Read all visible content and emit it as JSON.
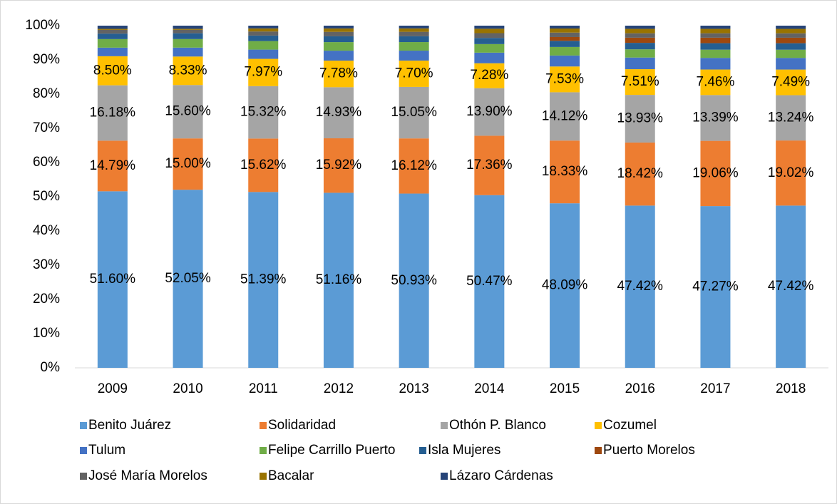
{
  "chart_data": {
    "type": "stacked_bar",
    "categories": [
      "2009",
      "2010",
      "2011",
      "2012",
      "2013",
      "2014",
      "2015",
      "2016",
      "2017",
      "2018"
    ],
    "series": [
      {
        "name": "Benito Juárez",
        "color": "#5b9bd5",
        "values": [
          51.6,
          52.05,
          51.39,
          51.16,
          50.93,
          50.47,
          48.09,
          47.42,
          47.27,
          47.42
        ],
        "value_labels": [
          "51.60%",
          "52.05%",
          "51.39%",
          "51.16%",
          "50.93%",
          "50.47%",
          "48.09%",
          "47.42%",
          "47.27%",
          "47.42%"
        ]
      },
      {
        "name": "Solidaridad",
        "color": "#ed7d31",
        "values": [
          14.79,
          15.0,
          15.62,
          15.92,
          16.12,
          17.36,
          18.33,
          18.42,
          19.06,
          19.02
        ],
        "value_labels": [
          "14.79%",
          "15.00%",
          "15.62%",
          "15.92%",
          "16.12%",
          "17.36%",
          "18.33%",
          "18.42%",
          "19.06%",
          "19.02%"
        ]
      },
      {
        "name": "Othón P. Blanco",
        "color": "#a5a5a5",
        "values": [
          16.18,
          15.6,
          15.32,
          14.93,
          15.05,
          13.9,
          14.12,
          13.93,
          13.39,
          13.24
        ],
        "value_labels": [
          "16.18%",
          "15.60%",
          "15.32%",
          "14.93%",
          "15.05%",
          "13.90%",
          "14.12%",
          "13.93%",
          "13.39%",
          "13.24%"
        ]
      },
      {
        "name": "Cozumel",
        "color": "#ffc000",
        "values": [
          8.5,
          8.33,
          7.97,
          7.78,
          7.7,
          7.28,
          7.53,
          7.51,
          7.46,
          7.49
        ],
        "value_labels": [
          "8.50%",
          "8.33%",
          "7.97%",
          "7.78%",
          "7.70%",
          "7.28%",
          "7.53%",
          "7.51%",
          "7.46%",
          "7.49%"
        ]
      },
      {
        "name": "Tulum",
        "color": "#4472c4",
        "values": [
          2.5,
          2.6,
          2.7,
          2.9,
          2.9,
          3.1,
          3.2,
          3.4,
          3.4,
          3.4
        ]
      },
      {
        "name": "Felipe Carrillo Puerto",
        "color": "#70ad47",
        "values": [
          2.5,
          2.5,
          2.5,
          2.5,
          2.5,
          2.5,
          2.5,
          2.4,
          2.4,
          2.4
        ]
      },
      {
        "name": "Isla Mujeres",
        "color": "#255e91",
        "values": [
          1.6,
          1.7,
          1.6,
          1.7,
          1.7,
          1.8,
          1.8,
          1.9,
          1.9,
          1.9
        ]
      },
      {
        "name": "Puerto Morelos",
        "color": "#9e480e",
        "values": [
          0,
          0,
          0,
          0,
          0,
          0,
          1.1,
          1.5,
          1.6,
          1.6
        ]
      },
      {
        "name": "José María Morelos",
        "color": "#636363",
        "values": [
          1.1,
          1.0,
          1.2,
          1.3,
          1.3,
          1.4,
          1.3,
          1.3,
          1.3,
          1.3
        ]
      },
      {
        "name": "Bacalar",
        "color": "#997300",
        "values": [
          0.3,
          0.3,
          0.9,
          1.0,
          1.0,
          1.3,
          1.2,
          1.3,
          1.3,
          1.3
        ]
      },
      {
        "name": "Lázaro Cárdenas",
        "color": "#264478",
        "values": [
          0.93,
          0.92,
          0.8,
          0.81,
          0.8,
          0.89,
          0.83,
          0.92,
          0.92,
          0.93
        ]
      }
    ],
    "ylim": [
      0,
      100
    ],
    "yticks": [
      {
        "value": 0,
        "label": "0%"
      },
      {
        "value": 10,
        "label": "10%"
      },
      {
        "value": 20,
        "label": "20%"
      },
      {
        "value": 30,
        "label": "30%"
      },
      {
        "value": 40,
        "label": "40%"
      },
      {
        "value": 50,
        "label": "50%"
      },
      {
        "value": 60,
        "label": "60%"
      },
      {
        "value": 70,
        "label": "70%"
      },
      {
        "value": 80,
        "label": "80%"
      },
      {
        "value": 90,
        "label": "90%"
      },
      {
        "value": 100,
        "label": "100%"
      }
    ],
    "legend": "bottom"
  }
}
